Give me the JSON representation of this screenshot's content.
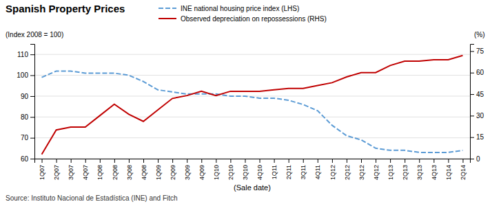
{
  "chart_data": {
    "type": "line",
    "title": "Spanish Property Prices",
    "xlabel": "(Sale date)",
    "ylabel": "(Index 2008 = 100)",
    "y2label": "(%)",
    "annotations": [
      "Source: Instituto Nacional de Estadística (INE) and Fitch"
    ],
    "categories": [
      "1Q07",
      "2Q07",
      "3Q07",
      "4Q07",
      "1Q08",
      "2Q08",
      "3Q08",
      "4Q08",
      "1Q09",
      "2Q09",
      "3Q09",
      "4Q09",
      "1Q10",
      "2Q10",
      "3Q10",
      "4Q10",
      "1Q11",
      "2Q11",
      "3Q11",
      "4Q11",
      "1Q12",
      "2Q12",
      "3Q12",
      "4Q12",
      "1Q13",
      "2Q13",
      "3Q13",
      "4Q13",
      "1Q14",
      "2Q14"
    ],
    "series": [
      {
        "name": "INE national housing price index (LHS)",
        "color": "#5b9bd5",
        "line_style": "dashed",
        "values": [
          99,
          102,
          102,
          101,
          101,
          101,
          100,
          97,
          93,
          92,
          91,
          91,
          91,
          90,
          90,
          89,
          89,
          88,
          86,
          83,
          76,
          71,
          69,
          65,
          64,
          64,
          63,
          63,
          63,
          64
        ]
      },
      {
        "name": "Observed depreciation on repossessions (RHS)",
        "color": "#c00000",
        "line_style": "solid",
        "axis": "y2",
        "values": [
          3,
          20,
          22,
          22,
          30,
          38,
          31,
          26,
          34,
          42,
          44,
          47,
          44,
          47,
          47,
          47,
          48,
          49,
          49,
          51,
          53,
          57,
          60,
          60,
          65,
          68,
          68,
          69,
          69,
          72
        ]
      }
    ],
    "ylim": [
      60,
      115
    ],
    "yticks": [
      60,
      70,
      80,
      90,
      100,
      110
    ],
    "y2lim": [
      0,
      80
    ],
    "y2ticks": [
      0,
      15,
      30,
      45,
      60,
      75
    ],
    "grid": true,
    "legend": "top"
  }
}
